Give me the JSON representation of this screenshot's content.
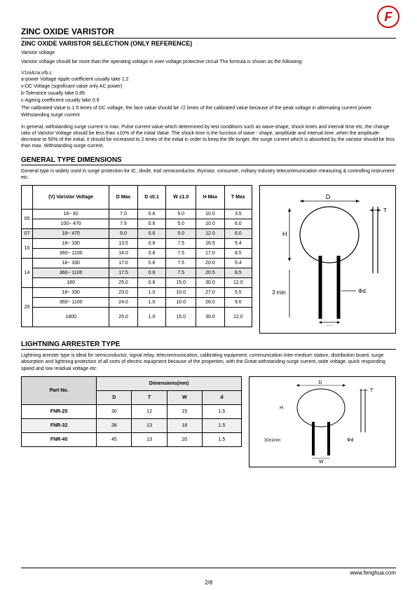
{
  "logo_letter": "F",
  "title": "ZINC OXIDE VARISTOR",
  "subtitle": "ZINC OXIDE VARISTOR SELECTION (ONLY REFERENCE)",
  "varistor_voltage_label": "Varistor voltage",
  "intro_para": "Varistor voltage should be more than the operating voltage in over-voltage protective circuit The formula is shown as the following:",
  "formula": "V1mA=a.v/b.c",
  "formula_lines": [
    "a-power Voltage ripple coefficient usually take 1.2",
    "v-DC Voltage (significant value only AC power)",
    "b-Tolerance usually take 0.85",
    "c-Ageing coefficient usually take 0.9",
    "The calibrated Value is 1.5 times of DC voltage, the face value should be √2 times of the calibrated value because of the peak voltage in alternating current power.",
    "Withstanding surge current"
  ],
  "surge_para": "In general, withstanding surge current is max. Pulse current value which determined by test conditions such as wave-shape, shock times and interval time etc, the change ratio of Varistor Voltage should be less than ±10% of the initial Value. The shock time is the function of wave - shape, amplitude and interval time ,when the amplitude decrease to 50% of the initial, it should be increased to 2 times of the initial in order to keep the life longer, the surge current which is absorbed by the varistor should be less than max. Withstanding surge current.",
  "section_general": "GENERAL TYPE DIMENSIONS",
  "general_desc": "General type is widely used in surge protection for IC, diode, trial semiconductor, thyristor, consumer, military industry telecommunication measuring & controlling instrument etc.",
  "t1": {
    "headers": [
      "(V) Varistor Voltage",
      "D Max",
      "D ±0.1",
      "W ±1.0",
      "H Max",
      "T Max"
    ],
    "groups": [
      {
        "side": "05",
        "rows": [
          {
            "vr": "18~ 82",
            "d": "7.0",
            "dt": "0.6",
            "w": "5.0",
            "h": "10.0",
            "t": "3.5"
          },
          {
            "vr": "100~ 470",
            "d": "7.5",
            "dt": "0.6",
            "w": "5.0",
            "h": "10.0",
            "t": "6.0"
          }
        ]
      },
      {
        "side": "07",
        "shade": true,
        "rows": [
          {
            "vr": "18~ 470",
            "d": "9.0",
            "dt": "0.6",
            "w": "5.0",
            "h": "12.0",
            "t": "6.0"
          }
        ]
      },
      {
        "side": "10",
        "rows": [
          {
            "vr": "18~ 330",
            "d": "13.5",
            "dt": "0.8",
            "w": "7.5",
            "h": "16.5",
            "t": "5.4"
          },
          {
            "vr": "360~ 1100",
            "d": "14.0",
            "dt": "0.8",
            "w": "7.5",
            "h": "17.0",
            "t": "8.5"
          }
        ]
      },
      {
        "side": "14",
        "rows": [
          {
            "vr": "18~ 330",
            "d": "17.0",
            "dt": "0.8",
            "w": "7.5",
            "h": "20.0",
            "t": "5.4"
          },
          {
            "vr": "360~ 1100",
            "d": "17.5",
            "dt": "0.8",
            "w": "7.5",
            "h": "20.5",
            "t": "8.5",
            "shade": true
          },
          {
            "vr": "180",
            "d": "25.0",
            "dt": "0.8",
            "w": "15.0",
            "h": "30.0",
            "t": "12.0"
          }
        ]
      },
      {
        "side": "20",
        "rows": [
          {
            "vr": "18~ 330",
            "d": "23.0",
            "dt": "1.0",
            "w": "10.0",
            "h": "27.0",
            "t": "5.5"
          },
          {
            "vr": "360~ 1100",
            "d": "24.0",
            "dt": "1.0",
            "w": "10.0",
            "h": "28.0",
            "t": "9.0"
          },
          {
            "vr": "1800",
            "d": "25.0",
            "dt": "1.0",
            "w": "15.0",
            "h": "30.0",
            "t": "12.0",
            "tall": true
          }
        ]
      }
    ]
  },
  "diagram1": {
    "D": "D",
    "T": "T",
    "H": "H",
    "3min": "3 min",
    "phid": "Φd",
    "W": "W"
  },
  "section_lightning": "LIGHTNING ARRESTER TYPE",
  "lightning_desc": "Lightning arrester type is ideal for semiconductor, signal relay, telecommunication, calibrating equipment, communication inter-medium station, distribution board, surge absorption and lightning-protection of all sorts of electric equipment because of the properties, with the Great withstanding surge current, wide voltage, quick responding speed and low residual voltage etc.",
  "t2": {
    "part_header": "Part No.",
    "dim_header": "Dimensions(mm)",
    "cols": [
      "D",
      "T",
      "W",
      "d"
    ],
    "rows": [
      {
        "part": "FNR-25",
        "d": "30",
        "t": "12",
        "w": "15",
        "dd": "1.5"
      },
      {
        "part": "FNR-32",
        "d": "38",
        "t": "13",
        "w": "18",
        "dd": "1.5",
        "shade": true
      },
      {
        "part": "FNR-40",
        "d": "45",
        "t": "13",
        "w": "20",
        "dd": "1.5"
      }
    ]
  },
  "diagram2": {
    "D": "D",
    "T": "T",
    "H": "H",
    "tol": "30±1mm",
    "phid": "Φd",
    "W": "W"
  },
  "footer_url": "www.fenghua.com",
  "page": "2/8"
}
